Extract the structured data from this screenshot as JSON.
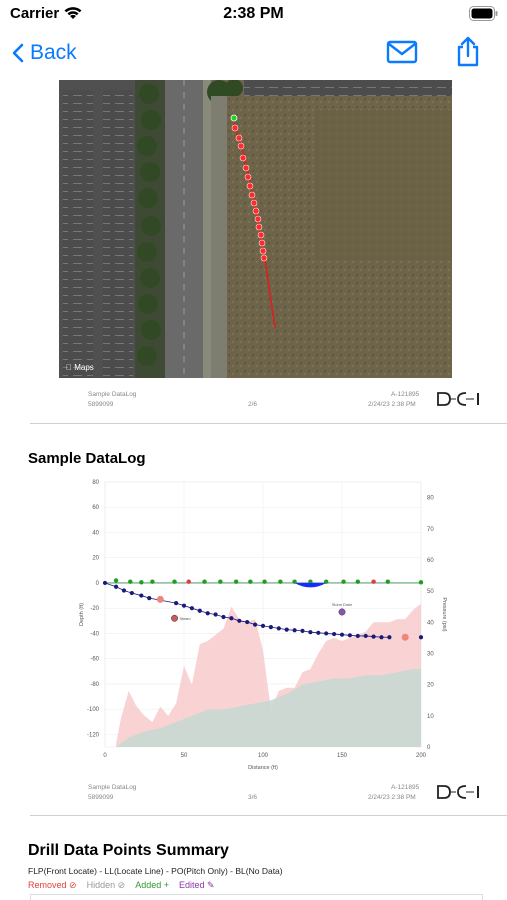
{
  "status_bar": {
    "carrier": "Carrier",
    "time": "2:38 PM"
  },
  "nav": {
    "back_label": "Back",
    "mail_icon": "envelope-icon",
    "share_icon": "share-icon"
  },
  "map": {
    "attribution": "Maps"
  },
  "page2_footer": {
    "left_line1": "Sample DataLog",
    "left_line2": "5899099",
    "page": "2/6",
    "right_line1": "A-121895",
    "right_line2": "2/24/23 2:38 PM"
  },
  "chart_section": {
    "title": "Sample DataLog"
  },
  "page3_footer": {
    "left_line1": "Sample DataLog",
    "left_line2": "5899099",
    "page": "3/6",
    "right_line1": "A-121895",
    "right_line2": "2/24/23 2:38 PM"
  },
  "summary": {
    "title": "Drill Data Points Summary",
    "legend": "FLP(Front Locate) - LL(Locate Line) - PO(Pitch Only) - BL(No Data)",
    "removed": "Removed",
    "hidden": "Hidden",
    "added": "Added",
    "edited": "Edited"
  },
  "chart_data": {
    "type": "line",
    "title": "",
    "xlabel": "Distance (ft)",
    "ylabel": "Depth (ft)",
    "y2label": "Pressure (psi)",
    "xlim": [
      0,
      200
    ],
    "ylim": [
      -130,
      80
    ],
    "y2lim": [
      0,
      85
    ],
    "x_ticks": [
      "0",
      "50",
      "100",
      "150",
      "200"
    ],
    "y_ticks": [
      "80",
      "60",
      "40",
      "20",
      "0",
      "-20",
      "-40",
      "-60",
      "-80",
      "-100",
      "-120"
    ],
    "y2_ticks": [
      "80",
      "70",
      "60",
      "50",
      "40",
      "30",
      "20",
      "10",
      "0"
    ],
    "grid": true,
    "colors": {
      "bore": "#1a1a7a",
      "surface": "#1f9e1f",
      "red_marker": "#e53b3b",
      "fill_pressure": "#f7c8c8",
      "fill_pressure2": "#c8d8d3",
      "highlight": "#1a2bff",
      "purple": "#8b52b8"
    },
    "series": [
      {
        "x": [
          0,
          7,
          12,
          17,
          23,
          28,
          45,
          50,
          55,
          60,
          65,
          70,
          75,
          80,
          85,
          90,
          95,
          100,
          105,
          110,
          115,
          120,
          125,
          130,
          135,
          140,
          145,
          150,
          155,
          160,
          165,
          170,
          175,
          180,
          200
        ],
        "values": [
          0,
          -3,
          -6,
          -8,
          -10,
          -12,
          -16,
          -18,
          -20,
          -22,
          -24,
          -25,
          -27,
          -28,
          -30,
          -31,
          -33,
          -34,
          -35,
          -36,
          -37,
          -37.5,
          -38,
          -39,
          -39.5,
          -40,
          -40.5,
          -41,
          -41.5,
          -42,
          -42,
          -42.5,
          -43,
          -43,
          -43
        ]
      },
      {
        "x": [
          7,
          16,
          23,
          30,
          44,
          53,
          63,
          73,
          83,
          92,
          101,
          111,
          120,
          130,
          140,
          151,
          160,
          170,
          179,
          200
        ],
        "values": [
          2,
          1,
          0.5,
          1,
          1,
          1,
          1,
          1,
          1,
          1,
          1,
          1,
          1,
          1,
          1,
          1,
          1,
          1,
          1,
          0.5
        ]
      },
      {
        "x": [
          7,
          10,
          15,
          20,
          25,
          30,
          35,
          40,
          45,
          50,
          55,
          60,
          65,
          70,
          75,
          80,
          85,
          90,
          95,
          100,
          105,
          110,
          115,
          120,
          125,
          130,
          135,
          140,
          145,
          150,
          155,
          160,
          165,
          170,
          175,
          180,
          185,
          190,
          195,
          200
        ],
        "values": [
          1,
          9,
          18,
          13,
          10,
          8,
          13,
          10,
          14,
          26,
          20,
          33,
          34,
          36,
          38,
          45,
          41,
          40,
          41,
          31,
          12,
          18,
          19,
          19,
          24,
          25,
          30,
          34,
          35,
          34,
          35,
          36,
          37,
          40,
          40,
          40,
          41,
          41,
          44,
          46
        ]
      },
      {
        "x": [
          7,
          15,
          25,
          35,
          45,
          55,
          65,
          75,
          85,
          95,
          105,
          115,
          125,
          135,
          145,
          155,
          165,
          175,
          185,
          195,
          200
        ],
        "values": [
          0,
          3,
          5,
          6,
          8,
          10,
          12,
          12,
          13,
          14,
          15,
          17,
          20,
          21,
          22,
          22,
          23,
          23,
          24,
          25,
          25
        ]
      }
    ],
    "annotations": [
      "Steam",
      "Storm Drain"
    ]
  }
}
